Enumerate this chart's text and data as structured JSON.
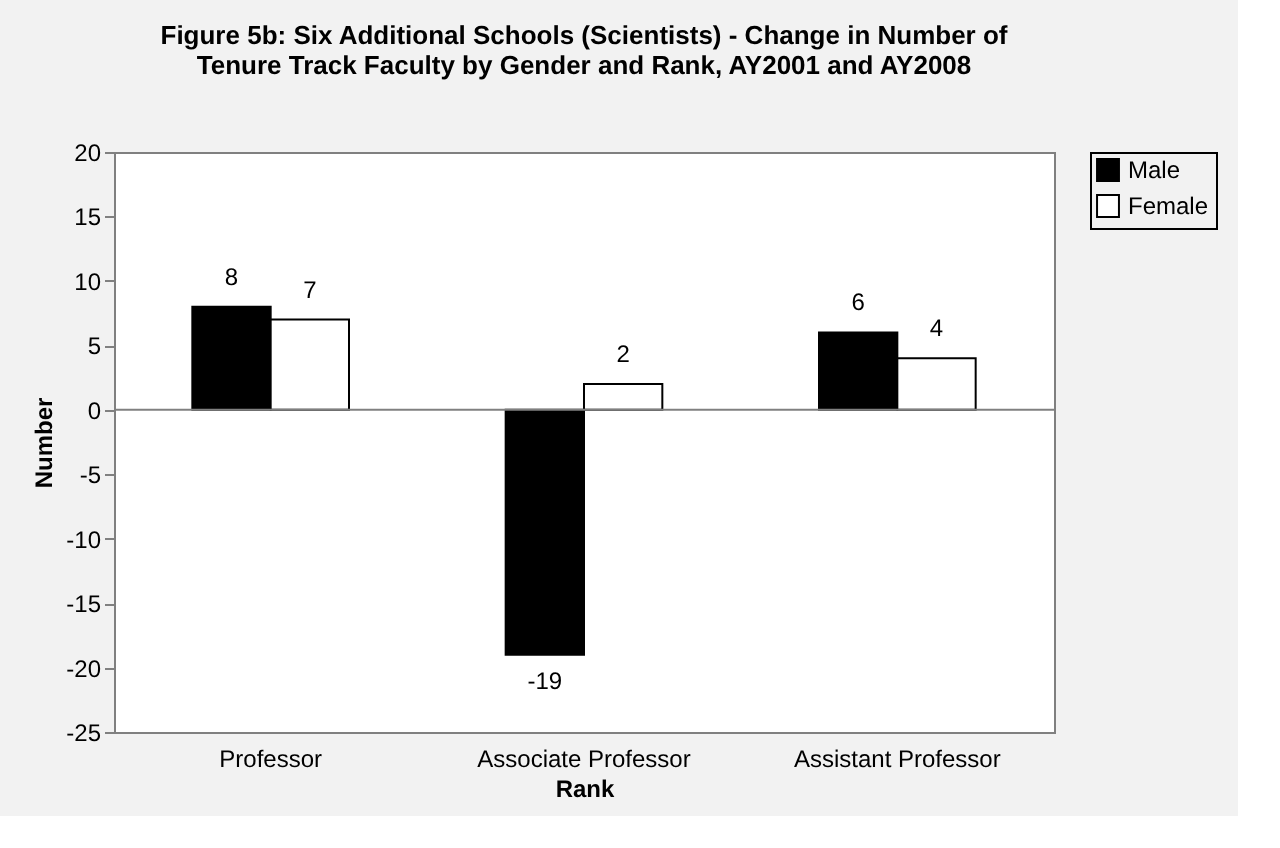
{
  "chart_data": {
    "type": "bar",
    "title": [
      "Figure 5b: Six Additional Schools (Scientists) - Change in Number of",
      "Tenure Track Faculty by Gender and Rank, AY2001 and AY2008"
    ],
    "xlabel": "Rank",
    "ylabel": "Number",
    "categories": [
      "Professor",
      "Associate Professor",
      "Assistant Professor"
    ],
    "series": [
      {
        "name": "Male",
        "color": "#000000",
        "values": [
          8,
          -19,
          6
        ]
      },
      {
        "name": "Female",
        "color": "#ffffff",
        "values": [
          7,
          2,
          4
        ]
      }
    ],
    "ylim": [
      -25,
      20
    ],
    "yticks": [
      -25,
      -20,
      -15,
      -10,
      -5,
      0,
      5,
      10,
      15,
      20
    ],
    "ref_lines": [
      {
        "axis": "y",
        "value": 0,
        "color": "#808080"
      }
    ],
    "data_labels": true,
    "legend": "right",
    "grid": false
  }
}
